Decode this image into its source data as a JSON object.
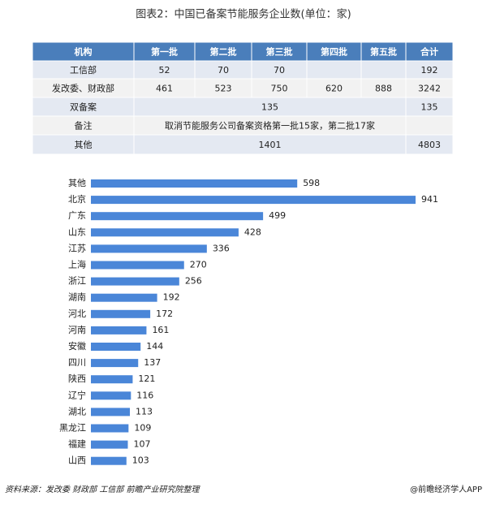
{
  "title": "图表2：中国已备案节能服务企业数(单位：家)",
  "table": {
    "header": [
      "机构",
      "第一批",
      "第二批",
      "第三批",
      "第四批",
      "第五批",
      "合计"
    ],
    "rows": [
      {
        "name": "工信部",
        "batches": [
          52,
          70,
          70,
          null,
          null
        ],
        "total": 192
      },
      {
        "name": "发改委、财政部",
        "batches": [
          461,
          523,
          750,
          620,
          888
        ],
        "total": 3242
      },
      {
        "name": "双备案",
        "merged": 135,
        "total": 135
      },
      {
        "name": "备注",
        "merged": "取消节能服务公司备案资格第一批15家，第二批17家"
      },
      {
        "name": "其他",
        "merged": 1401,
        "total": 4803
      }
    ]
  },
  "chart_data": {
    "type": "bar",
    "orientation": "horizontal",
    "color": "#4a86d8",
    "categories": [
      "其他",
      "北京",
      "广东",
      "山东",
      "江苏",
      "上海",
      "浙江",
      "湖南",
      "河北",
      "河南",
      "安徽",
      "四川",
      "陕西",
      "辽宁",
      "湖北",
      "黑龙江",
      "福建",
      "山西"
    ],
    "values": [
      598,
      941,
      499,
      428,
      336,
      270,
      256,
      192,
      172,
      161,
      144,
      137,
      121,
      116,
      113,
      109,
      107,
      103
    ]
  },
  "source": "资料来源：发改委 财政部 工信部 前瞻产业研究院整理",
  "credit": "@前瞻经济学人APP"
}
